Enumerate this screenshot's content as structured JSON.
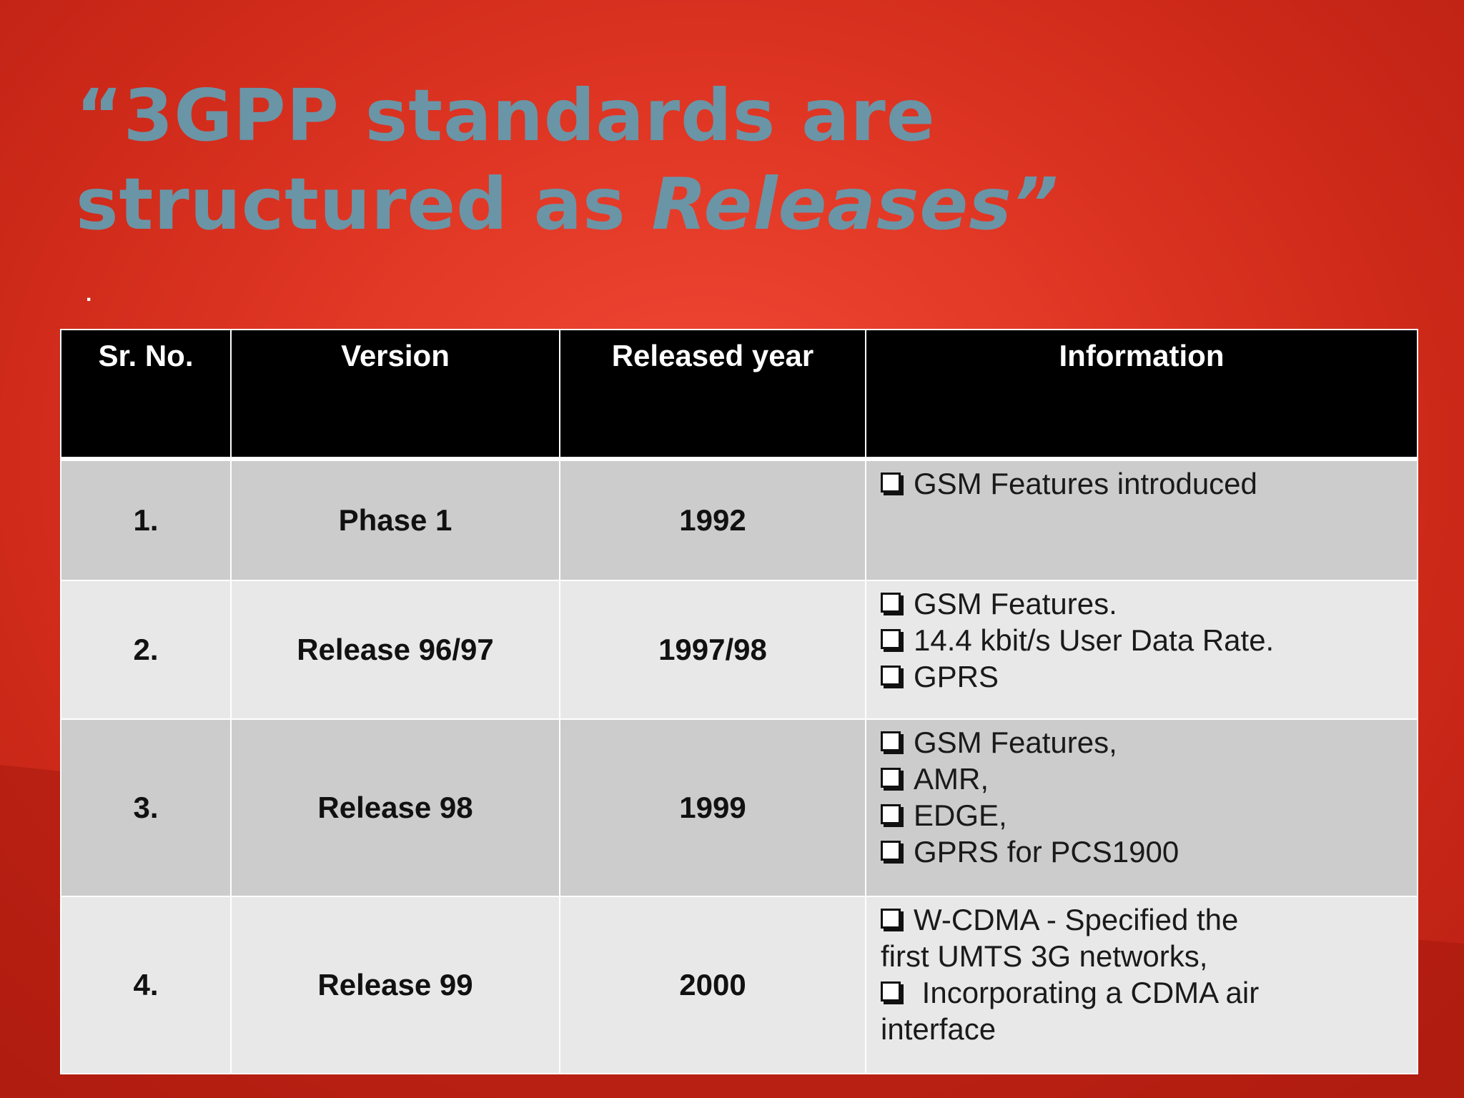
{
  "slide": {
    "title_part1": "“3GPP standards are",
    "title_part2": "structured as ",
    "title_italic": "Releases”",
    "dot": "."
  },
  "table": {
    "headers": [
      "Sr. No.",
      "Version",
      "Released year",
      "Information"
    ],
    "rows": [
      {
        "num": "1.",
        "version": "Phase 1",
        "year": "1992",
        "info": [
          "GSM Features introduced"
        ]
      },
      {
        "num": "2.",
        "version": "Release 96/97",
        "year": "1997/98",
        "info": [
          "GSM Features.",
          "14.4 kbit/s User Data Rate.",
          "GPRS"
        ]
      },
      {
        "num": "3.",
        "version": "Release 98",
        "year": "1999",
        "info": [
          "GSM Features,",
          "AMR,",
          "EDGE,",
          "GPRS for PCS1900"
        ]
      },
      {
        "num": "4.",
        "version": "Release 99",
        "year": "2000",
        "info_lines": [
          {
            "bullet": true,
            "text": "W-CDMA - Specified the"
          },
          {
            "bullet": false,
            "text": "first UMTS 3G networks,"
          },
          {
            "bullet": true,
            "text": " Incorporating a CDMA air"
          },
          {
            "bullet": false,
            "text": "interface"
          }
        ]
      }
    ]
  },
  "colors": {
    "title": "#6a95a6",
    "header_bg": "#000000",
    "row_dark": "#cccccc",
    "row_light": "#e8e8e8",
    "background": "#e23826"
  },
  "icons": {
    "bullet": "checkbox-bullet-icon"
  }
}
